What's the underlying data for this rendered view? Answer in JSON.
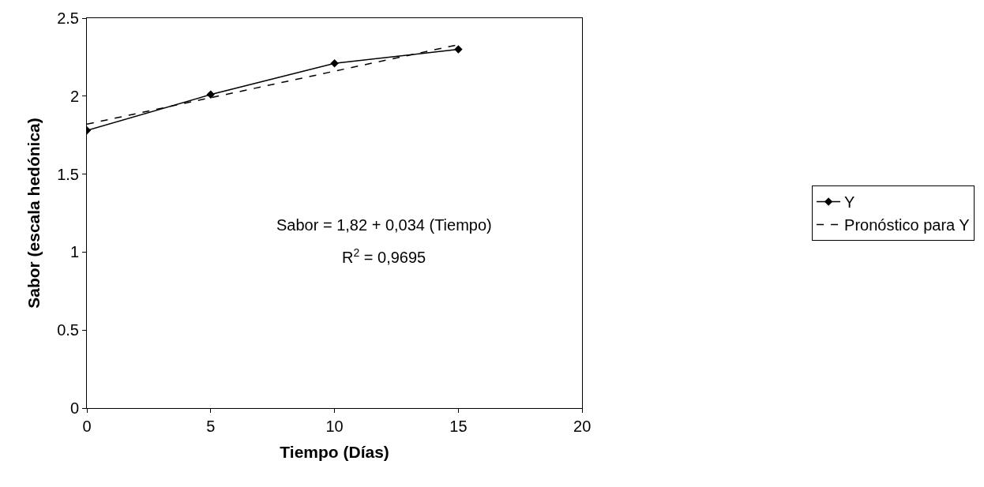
{
  "chart_data": {
    "type": "line",
    "xlabel": "Tiempo (Días)",
    "ylabel": "Sabor (escala hedónica)",
    "xlim": [
      0,
      20
    ],
    "xticks": [
      0,
      5,
      10,
      15,
      20
    ],
    "ylim": [
      0,
      2.5
    ],
    "yticks": [
      0,
      0.5,
      1,
      1.5,
      2,
      2.5
    ],
    "legend": "right",
    "marker": "diamond",
    "series": [
      {
        "name": "Y",
        "color": "#000000",
        "x": [
          0,
          5,
          10,
          15
        ],
        "values": [
          1.78,
          2.01,
          2.21,
          2.3
        ]
      },
      {
        "name": "Pronóstico para Y",
        "color": "#000000",
        "x": [
          0,
          15
        ],
        "values": [
          1.82,
          2.33
        ],
        "marker": "none",
        "line_style": "dashed"
      }
    ],
    "annotations": [
      "Sabor = 1,82 + 0,034 (Tiempo)",
      "R$^{2}$ = 0,9695"
    ]
  }
}
